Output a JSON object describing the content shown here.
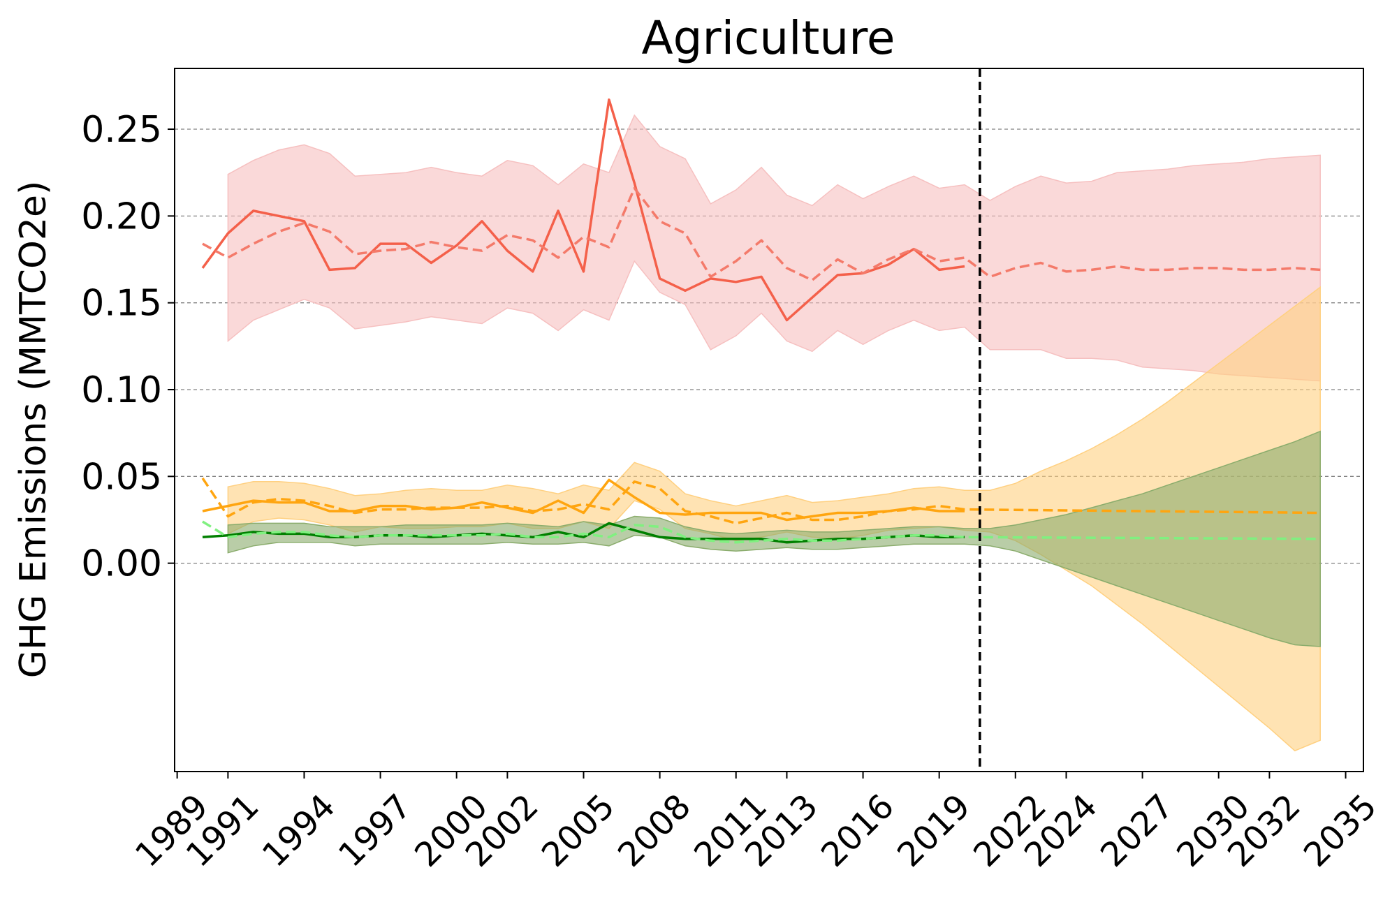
{
  "chart_data": {
    "type": "line",
    "title": "Agriculture",
    "xlabel": "",
    "ylabel": "GHG Emissions (MMTCO2e)",
    "xlim": [
      1988.9,
      2035.7
    ],
    "ylim": [
      -0.12,
      0.285
    ],
    "yticks": [
      "0.00",
      "0.05",
      "0.10",
      "0.15",
      "0.20",
      "0.25"
    ],
    "ytick_values": [
      0.0,
      0.05,
      0.1,
      0.15,
      0.2,
      0.25
    ],
    "xticks": [
      "1989",
      "1991",
      "1994",
      "1997",
      "2000",
      "2002",
      "2005",
      "2008",
      "2011",
      "2013",
      "2016",
      "2019",
      "2022",
      "2024",
      "2027",
      "2030",
      "2032",
      "2035"
    ],
    "xtick_values": [
      1989,
      1991,
      1994,
      1997,
      2000,
      2002,
      2005,
      2008,
      2011,
      2013,
      2016,
      2019,
      2022,
      2024,
      2027,
      2030,
      2032,
      2035
    ],
    "grid": "horizontal dashed",
    "vline": {
      "x": 2020.6,
      "style": "dashed",
      "color": "#000000"
    },
    "colors": {
      "red": "#f4604a",
      "red_dashed": "#f47a6a",
      "red_band": "#f6c0c0",
      "orange": "#ffa510",
      "orange_band": "#ffd080",
      "green": "#008000",
      "green_dashed": "#80f080",
      "green_band": "#8aac6c"
    },
    "series": [
      {
        "color": "red",
        "style": "solid",
        "x": [
          1990,
          1991,
          1992,
          1993,
          1994,
          1995,
          1996,
          1997,
          1998,
          1999,
          2000,
          2001,
          2002,
          2003,
          2004,
          2005,
          2006,
          2007,
          2008,
          2009,
          2010,
          2011,
          2012,
          2013,
          2014,
          2015,
          2016,
          2017,
          2018,
          2019,
          2020
        ],
        "values": [
          0.17,
          0.19,
          0.203,
          0.2,
          0.197,
          0.169,
          0.17,
          0.184,
          0.184,
          0.173,
          0.183,
          0.197,
          0.18,
          0.168,
          0.203,
          0.168,
          0.267,
          0.219,
          0.164,
          0.157,
          0.164,
          0.162,
          0.165,
          0.14,
          0.153,
          0.166,
          0.167,
          0.172,
          0.181,
          0.169,
          0.171
        ]
      },
      {
        "color": "red_dashed",
        "style": "dashed",
        "x": [
          1990,
          1991,
          1992,
          1993,
          1994,
          1995,
          1996,
          1997,
          1998,
          1999,
          2000,
          2001,
          2002,
          2003,
          2004,
          2005,
          2006,
          2007,
          2008,
          2009,
          2010,
          2011,
          2012,
          2013,
          2014,
          2015,
          2016,
          2017,
          2018,
          2019,
          2020,
          2021,
          2022,
          2023,
          2024,
          2025,
          2026,
          2027,
          2028,
          2029,
          2030,
          2031,
          2032,
          2033,
          2034
        ],
        "values": [
          0.184,
          0.176,
          0.184,
          0.191,
          0.196,
          0.191,
          0.178,
          0.18,
          0.181,
          0.185,
          0.182,
          0.18,
          0.189,
          0.186,
          0.176,
          0.188,
          0.182,
          0.216,
          0.197,
          0.19,
          0.165,
          0.174,
          0.186,
          0.17,
          0.163,
          0.175,
          0.167,
          0.175,
          0.181,
          0.174,
          0.176,
          0.165,
          0.17,
          0.173,
          0.168,
          0.169,
          0.171,
          0.169,
          0.169,
          0.17,
          0.17,
          0.169,
          0.169,
          0.17,
          0.169
        ]
      },
      {
        "color": "orange",
        "style": "solid",
        "x": [
          1990,
          1991,
          1992,
          1993,
          1994,
          1995,
          1996,
          1997,
          1998,
          1999,
          2000,
          2001,
          2002,
          2003,
          2004,
          2005,
          2006,
          2007,
          2008,
          2009,
          2010,
          2011,
          2012,
          2013,
          2014,
          2015,
          2016,
          2017,
          2018,
          2019,
          2020
        ],
        "values": [
          0.03,
          0.033,
          0.036,
          0.035,
          0.035,
          0.03,
          0.03,
          0.033,
          0.033,
          0.031,
          0.032,
          0.035,
          0.032,
          0.029,
          0.036,
          0.029,
          0.048,
          0.038,
          0.029,
          0.028,
          0.029,
          0.029,
          0.029,
          0.025,
          0.027,
          0.029,
          0.029,
          0.03,
          0.032,
          0.03,
          0.03
        ]
      },
      {
        "color": "orange",
        "style": "dashed",
        "x": [
          1990,
          1991,
          1992,
          1993,
          1994,
          1995,
          1996,
          1997,
          1998,
          1999,
          2000,
          2001,
          2002,
          2003,
          2004,
          2005,
          2006,
          2007,
          2008,
          2009,
          2010,
          2011,
          2012,
          2013,
          2014,
          2015,
          2016,
          2017,
          2018,
          2019,
          2020,
          2034
        ],
        "values": [
          0.049,
          0.027,
          0.035,
          0.037,
          0.036,
          0.033,
          0.029,
          0.031,
          0.031,
          0.032,
          0.032,
          0.032,
          0.033,
          0.03,
          0.031,
          0.034,
          0.031,
          0.047,
          0.043,
          0.03,
          0.027,
          0.023,
          0.026,
          0.029,
          0.025,
          0.025,
          0.027,
          0.03,
          0.031,
          0.033,
          0.031,
          0.029
        ]
      },
      {
        "color": "green",
        "style": "solid",
        "x": [
          1990,
          1991,
          1992,
          1993,
          1994,
          1995,
          1996,
          1997,
          1998,
          1999,
          2000,
          2001,
          2002,
          2003,
          2004,
          2005,
          2006,
          2007,
          2008,
          2009,
          2010,
          2011,
          2012,
          2013,
          2014,
          2015,
          2016,
          2017,
          2018,
          2019,
          2020
        ],
        "values": [
          0.015,
          0.016,
          0.018,
          0.017,
          0.017,
          0.015,
          0.015,
          0.016,
          0.016,
          0.015,
          0.016,
          0.017,
          0.016,
          0.015,
          0.018,
          0.015,
          0.023,
          0.019,
          0.015,
          0.014,
          0.014,
          0.014,
          0.014,
          0.012,
          0.013,
          0.014,
          0.014,
          0.015,
          0.016,
          0.015,
          0.015
        ]
      },
      {
        "color": "green_dashed",
        "style": "dashed",
        "x": [
          1990,
          1991,
          1992,
          1993,
          1994,
          1995,
          1996,
          1997,
          1998,
          1999,
          2000,
          2001,
          2002,
          2003,
          2004,
          2005,
          2006,
          2007,
          2008,
          2009,
          2010,
          2011,
          2012,
          2013,
          2014,
          2015,
          2016,
          2017,
          2018,
          2019,
          2020,
          2034
        ],
        "values": [
          0.024,
          0.015,
          0.017,
          0.018,
          0.018,
          0.016,
          0.015,
          0.016,
          0.016,
          0.016,
          0.016,
          0.016,
          0.017,
          0.015,
          0.015,
          0.017,
          0.015,
          0.022,
          0.021,
          0.015,
          0.013,
          0.012,
          0.013,
          0.014,
          0.013,
          0.013,
          0.014,
          0.015,
          0.016,
          0.016,
          0.015,
          0.014
        ]
      }
    ],
    "bands": [
      {
        "color": "red_band",
        "x": [
          1991,
          1992,
          1993,
          1994,
          1995,
          1996,
          1997,
          1998,
          1999,
          2000,
          2001,
          2002,
          2003,
          2004,
          2005,
          2006,
          2007,
          2008,
          2009,
          2010,
          2011,
          2012,
          2013,
          2014,
          2015,
          2016,
          2017,
          2018,
          2019,
          2020,
          2021,
          2022,
          2023,
          2024,
          2025,
          2026,
          2027,
          2028,
          2029,
          2030,
          2031,
          2032,
          2033,
          2034
        ],
        "upper": [
          0.224,
          0.232,
          0.238,
          0.241,
          0.236,
          0.223,
          0.224,
          0.225,
          0.228,
          0.225,
          0.223,
          0.232,
          0.229,
          0.218,
          0.23,
          0.225,
          0.258,
          0.24,
          0.233,
          0.207,
          0.215,
          0.228,
          0.212,
          0.206,
          0.218,
          0.21,
          0.217,
          0.223,
          0.216,
          0.218,
          0.209,
          0.217,
          0.223,
          0.219,
          0.22,
          0.225,
          0.226,
          0.227,
          0.229,
          0.23,
          0.231,
          0.233,
          0.234,
          0.235
        ],
        "lower": [
          0.128,
          0.14,
          0.146,
          0.152,
          0.147,
          0.135,
          0.137,
          0.139,
          0.142,
          0.14,
          0.138,
          0.147,
          0.144,
          0.134,
          0.146,
          0.14,
          0.174,
          0.156,
          0.149,
          0.123,
          0.131,
          0.144,
          0.128,
          0.122,
          0.134,
          0.126,
          0.134,
          0.14,
          0.134,
          0.136,
          0.123,
          0.123,
          0.123,
          0.118,
          0.118,
          0.117,
          0.113,
          0.112,
          0.111,
          0.109,
          0.108,
          0.107,
          0.106,
          0.105
        ]
      },
      {
        "color": "orange_band",
        "x": [
          1991,
          1992,
          1993,
          1994,
          1995,
          1996,
          1997,
          1998,
          1999,
          2000,
          2001,
          2002,
          2003,
          2004,
          2005,
          2006,
          2007,
          2008,
          2009,
          2010,
          2011,
          2012,
          2013,
          2014,
          2015,
          2016,
          2017,
          2018,
          2019,
          2020,
          2021,
          2022,
          2023,
          2024,
          2025,
          2026,
          2027,
          2028,
          2029,
          2030,
          2031,
          2032,
          2033,
          2034
        ],
        "upper": [
          0.044,
          0.047,
          0.047,
          0.046,
          0.043,
          0.039,
          0.04,
          0.042,
          0.043,
          0.042,
          0.042,
          0.045,
          0.043,
          0.04,
          0.045,
          0.042,
          0.058,
          0.053,
          0.04,
          0.036,
          0.033,
          0.036,
          0.039,
          0.035,
          0.036,
          0.038,
          0.04,
          0.043,
          0.044,
          0.042,
          0.042,
          0.046,
          0.053,
          0.059,
          0.066,
          0.074,
          0.083,
          0.093,
          0.104,
          0.115,
          0.126,
          0.137,
          0.148,
          0.159
        ],
        "lower": [
          0.017,
          0.024,
          0.026,
          0.025,
          0.022,
          0.018,
          0.021,
          0.02,
          0.02,
          0.021,
          0.021,
          0.023,
          0.02,
          0.02,
          0.024,
          0.02,
          0.036,
          0.031,
          0.02,
          0.017,
          0.013,
          0.015,
          0.018,
          0.015,
          0.014,
          0.016,
          0.019,
          0.02,
          0.021,
          0.019,
          0.018,
          0.013,
          0.005,
          -0.004,
          -0.013,
          -0.024,
          -0.035,
          -0.047,
          -0.059,
          -0.071,
          -0.083,
          -0.095,
          -0.108,
          -0.102
        ]
      },
      {
        "color": "green_band",
        "x": [
          1991,
          1992,
          1993,
          1994,
          1995,
          1996,
          1997,
          1998,
          1999,
          2000,
          2001,
          2002,
          2003,
          2004,
          2005,
          2006,
          2007,
          2008,
          2009,
          2010,
          2011,
          2012,
          2013,
          2014,
          2015,
          2016,
          2017,
          2018,
          2019,
          2020,
          2021,
          2022,
          2023,
          2024,
          2025,
          2026,
          2027,
          2028,
          2029,
          2030,
          2031,
          2032,
          2033,
          2034
        ],
        "upper": [
          0.022,
          0.023,
          0.023,
          0.023,
          0.021,
          0.021,
          0.021,
          0.022,
          0.022,
          0.022,
          0.022,
          0.023,
          0.022,
          0.021,
          0.024,
          0.022,
          0.027,
          0.026,
          0.021,
          0.018,
          0.017,
          0.018,
          0.019,
          0.018,
          0.018,
          0.019,
          0.02,
          0.021,
          0.021,
          0.02,
          0.02,
          0.022,
          0.025,
          0.028,
          0.032,
          0.036,
          0.04,
          0.045,
          0.05,
          0.055,
          0.06,
          0.065,
          0.07,
          0.076
        ],
        "lower": [
          0.006,
          0.01,
          0.012,
          0.012,
          0.012,
          0.01,
          0.011,
          0.011,
          0.011,
          0.011,
          0.011,
          0.012,
          0.011,
          0.011,
          0.012,
          0.01,
          0.016,
          0.015,
          0.01,
          0.008,
          0.007,
          0.008,
          0.009,
          0.008,
          0.008,
          0.009,
          0.01,
          0.011,
          0.011,
          0.011,
          0.01,
          0.007,
          0.002,
          -0.003,
          -0.008,
          -0.013,
          -0.018,
          -0.023,
          -0.028,
          -0.033,
          -0.038,
          -0.043,
          -0.047,
          -0.048
        ]
      }
    ]
  }
}
